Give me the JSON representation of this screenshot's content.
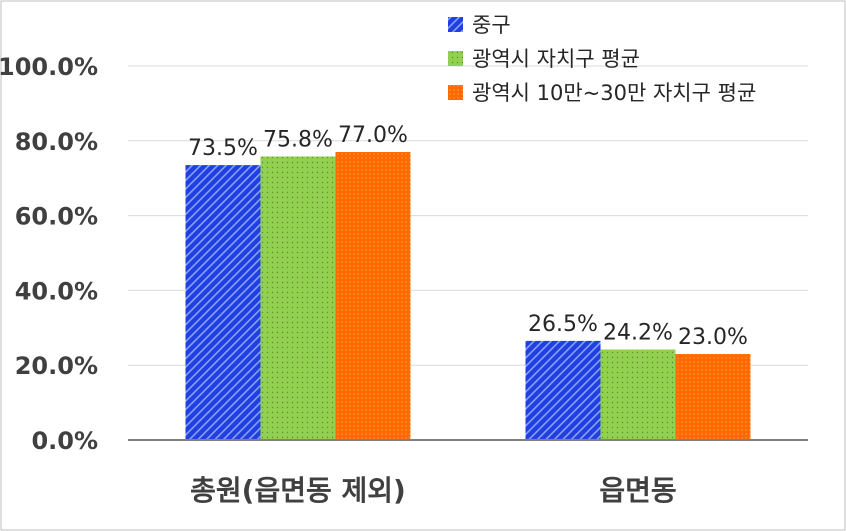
{
  "chart_data": {
    "type": "bar",
    "categories": [
      "총원(읍면동 제외)",
      "읍면동"
    ],
    "series": [
      {
        "name": "중구",
        "values": [
          73.5,
          26.5
        ],
        "labels": [
          "73.5%",
          "26.5%"
        ],
        "color": "#1f3fe0",
        "pattern": "diagonal-stripes"
      },
      {
        "name": "광역시 자치구 평균",
        "values": [
          75.8,
          24.2
        ],
        "labels": [
          "75.8%",
          "24.2%"
        ],
        "color": "#92d050",
        "pattern": "dots"
      },
      {
        "name": "광역시 10만~30만 자치구 평균",
        "values": [
          77.0,
          23.0
        ],
        "labels": [
          "77.0%",
          "23.0%"
        ],
        "color": "#ff6a00",
        "pattern": "fine-dots"
      }
    ],
    "ylim": [
      0,
      100
    ],
    "yticks": [
      "0.0%",
      "20.0%",
      "40.0%",
      "60.0%",
      "80.0%",
      "100.0%"
    ],
    "grid": true,
    "legend_position": "top-right",
    "title": "",
    "xlabel": "",
    "ylabel": ""
  }
}
